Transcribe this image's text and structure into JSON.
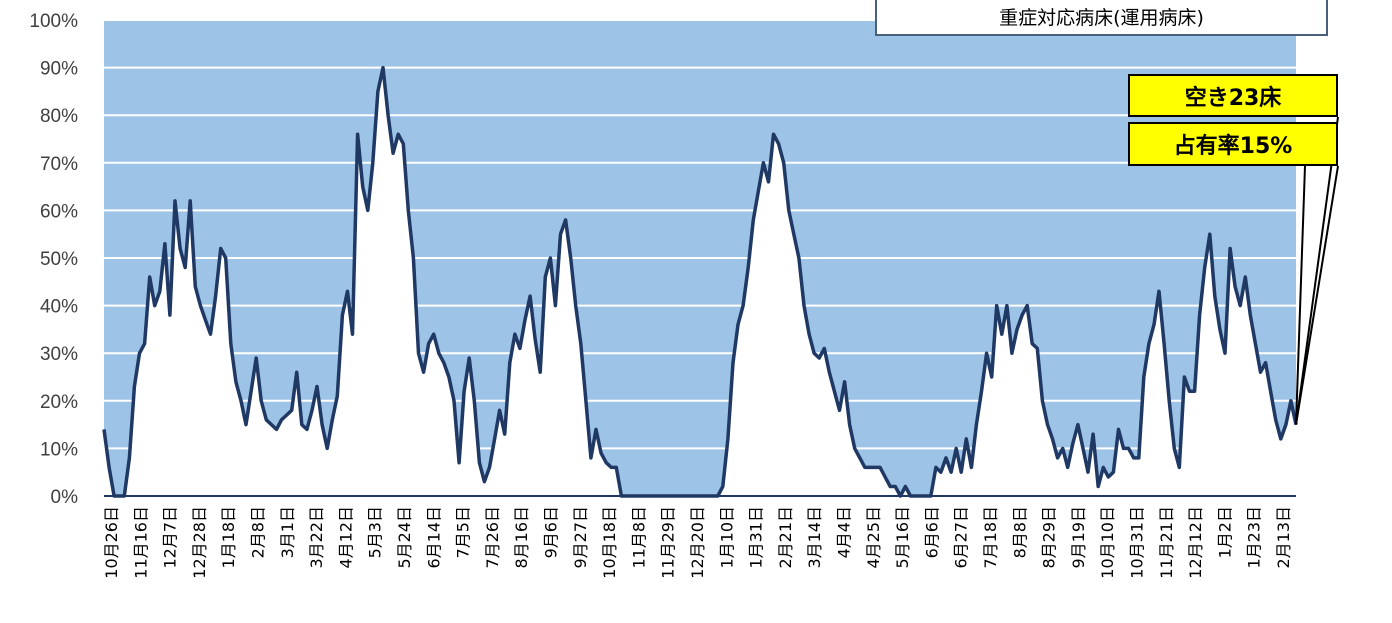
{
  "title": "重症対応病床(運用病床)",
  "callouts": {
    "vacant": "空き23床",
    "occupancy": "占有率15%"
  },
  "colors": {
    "plot_bg": "#9dc3e6",
    "line": "#1f3864",
    "fill_under": "#ffffff",
    "grid": "#ffffff",
    "callout_bg": "#ffff00"
  },
  "chart_data": {
    "type": "area",
    "title": "重症対応病床(運用病床)",
    "xlabel": "",
    "ylabel": "",
    "ylim": [
      0,
      100
    ],
    "y_ticks": [
      "0%",
      "10%",
      "20%",
      "30%",
      "40%",
      "50%",
      "60%",
      "70%",
      "80%",
      "90%",
      "100%"
    ],
    "grid": true,
    "x_tick_labels": [
      "10月26日",
      "11月16日",
      "12月7日",
      "12月28日",
      "1月18日",
      "2月8日",
      "3月1日",
      "3月22日",
      "4月12日",
      "5月3日",
      "5月24日",
      "6月14日",
      "7月5日",
      "7月26日",
      "8月16日",
      "9月6日",
      "9月27日",
      "10月18日",
      "11月8日",
      "11月29日",
      "12月20日",
      "1月10日",
      "1月31日",
      "2月21日",
      "3月14日",
      "4月4日",
      "4月25日",
      "5月16日",
      "6月6日",
      "6月27日",
      "7月18日",
      "8月8日",
      "8月29日",
      "9月19日",
      "10月10日",
      "10月31日",
      "11月21日",
      "12月12日",
      "1月2日",
      "1月23日",
      "2月13日"
    ],
    "series": [
      {
        "values": [
          14,
          6,
          0,
          0,
          0,
          8,
          23,
          30,
          32,
          46,
          40,
          43,
          53,
          38,
          62,
          52,
          48,
          62,
          44,
          40,
          37,
          34,
          42,
          52,
          50,
          32,
          24,
          20,
          15,
          22,
          29,
          20,
          16,
          15,
          14,
          16,
          17,
          18,
          26,
          15,
          14,
          18,
          23,
          15,
          10,
          16,
          21,
          38,
          43,
          34,
          76,
          65,
          60,
          70,
          85,
          90,
          80,
          72,
          76,
          74,
          60,
          50,
          30,
          26,
          32,
          34,
          30,
          28,
          25,
          20,
          7,
          22,
          29,
          20,
          7,
          3,
          6,
          12,
          18,
          13,
          28,
          34,
          31,
          37,
          42,
          33,
          26,
          46,
          50,
          40,
          55,
          58,
          50,
          40,
          32,
          20,
          8,
          14,
          9,
          7,
          6,
          6,
          0,
          0,
          0,
          0,
          0,
          0,
          0,
          0,
          0,
          0,
          0,
          0,
          0,
          0,
          0,
          0,
          0,
          0,
          0,
          0,
          2,
          12,
          28,
          36,
          40,
          48,
          58,
          64,
          70,
          66,
          76,
          74,
          70,
          60,
          55,
          50,
          40,
          34,
          30,
          29,
          31,
          26,
          22,
          18,
          24,
          15,
          10,
          8,
          6,
          6,
          6,
          6,
          4,
          2,
          2,
          0,
          2,
          0,
          0,
          0,
          0,
          0,
          6,
          5,
          8,
          5,
          10,
          5,
          12,
          6,
          15,
          22,
          30,
          25,
          40,
          34,
          40,
          30,
          35,
          38,
          40,
          32,
          31,
          20,
          15,
          12,
          8,
          10,
          6,
          11,
          15,
          10,
          5,
          13,
          2,
          6,
          4,
          5,
          14,
          10,
          10,
          8,
          8,
          25,
          32,
          36,
          43,
          32,
          20,
          10,
          6,
          25,
          22,
          22,
          38,
          48,
          55,
          42,
          35,
          30,
          52,
          44,
          40,
          46,
          38,
          32,
          26,
          28,
          22,
          16,
          12,
          15,
          20,
          15
        ]
      }
    ]
  }
}
